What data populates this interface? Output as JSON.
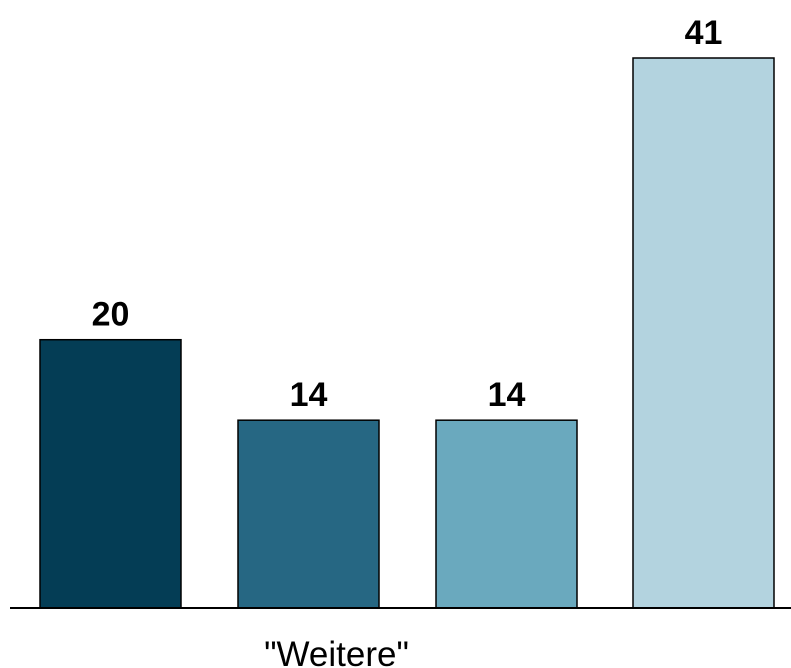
{
  "chart_data": {
    "type": "bar",
    "categories": [
      "",
      "\"Weitere\"",
      "",
      ""
    ],
    "values": [
      20,
      14,
      14,
      41
    ],
    "colors": [
      "#043d55",
      "#266783",
      "#6aa9be",
      "#b3d3df"
    ],
    "title": "",
    "xlabel": "",
    "ylabel": "",
    "ylim": [
      0,
      41
    ],
    "grid": false,
    "legend": "none"
  }
}
